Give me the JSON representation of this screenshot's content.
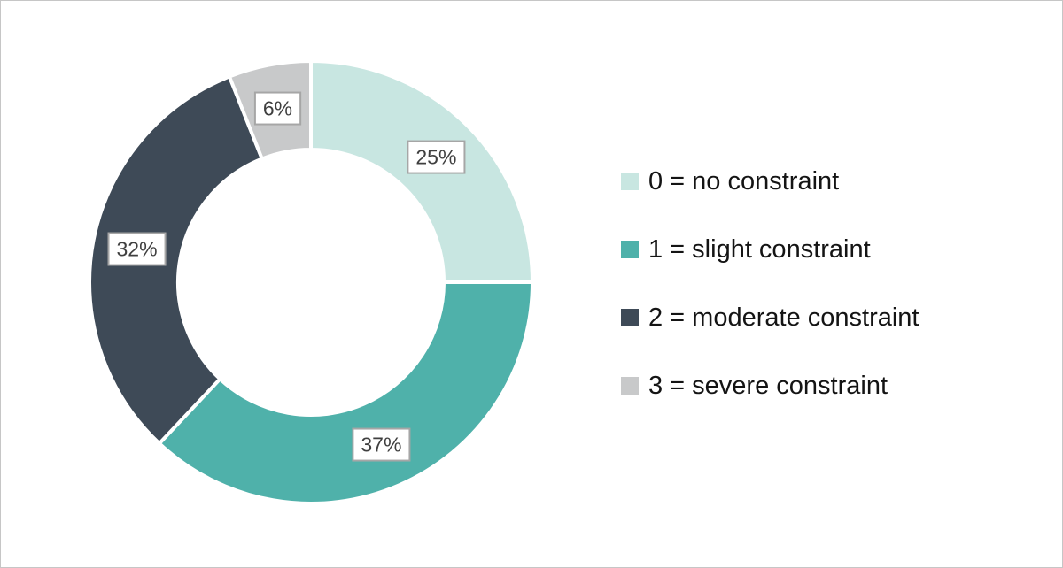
{
  "chart_data": {
    "type": "pie",
    "variant": "donut",
    "title": "",
    "unit": "%",
    "direction": "clockwise",
    "start_angle_deg": 0,
    "inner_radius_ratio": 0.6,
    "legend_position": "right",
    "grid": false,
    "categories": [
      "0 = no constraint",
      "1 = slight constraint",
      "2 = moderate constraint",
      "3 = severe constraint"
    ],
    "values": [
      25,
      37,
      32,
      6
    ],
    "data_label_style": "boxed percentage at mid-ring",
    "slices": [
      {
        "label": "0 = no constraint",
        "value": 25,
        "display": "25%",
        "color": "#c8e6e1"
      },
      {
        "label": "1 = slight constraint",
        "value": 37,
        "display": "37%",
        "color": "#4fb1aa"
      },
      {
        "label": "2 = moderate constraint",
        "value": 32,
        "display": "32%",
        "color": "#3e4a57"
      },
      {
        "label": "3 = severe constraint",
        "value": 6,
        "display": "6%",
        "color": "#c8c9ca"
      }
    ]
  },
  "style": {
    "slice_gap_color": "#ffffff",
    "label_box_border": "#a6a6a6",
    "label_text_color": "#3f3f3f",
    "legend_text_color": "#141414",
    "canvas_border": "#c6c6c6"
  }
}
